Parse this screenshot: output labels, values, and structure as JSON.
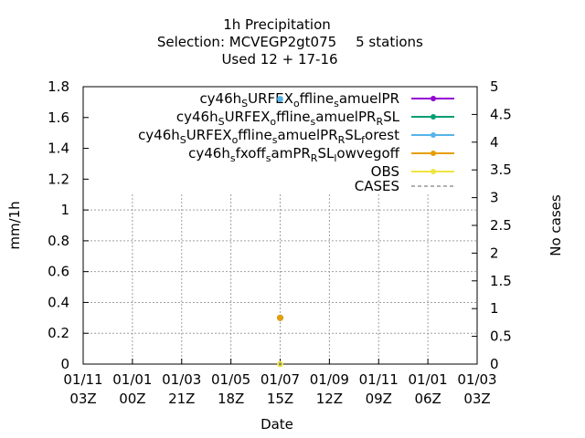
{
  "chart_data": {
    "type": "scatter",
    "title": "1h Precipitation",
    "subtitle_selection": "Selection: MCVEGP2gt075",
    "subtitle_stations": "5 stations",
    "subtitle_used": "Used  12 + 17-16",
    "xlabel": "Date",
    "ylabel": "mm/1h",
    "y2label": "No cases",
    "ylim": [
      0,
      1.8
    ],
    "y2lim": [
      0,
      5
    ],
    "yticks": [
      "0",
      "0.2",
      "0.4",
      "0.6",
      "0.8",
      "1",
      "1.2",
      "1.4",
      "1.6",
      "1.8"
    ],
    "y2ticks": [
      "0",
      "0.5",
      "1",
      "1.5",
      "2",
      "2.5",
      "3",
      "3.5",
      "4",
      "4.5",
      "5"
    ],
    "xticks": [
      {
        "line1": "01/11",
        "line2": "03Z"
      },
      {
        "line1": "01/01",
        "line2": "00Z"
      },
      {
        "line1": "01/03",
        "line2": "21Z"
      },
      {
        "line1": "01/05",
        "line2": "18Z"
      },
      {
        "line1": "01/07",
        "line2": "15Z"
      },
      {
        "line1": "01/09",
        "line2": "12Z"
      },
      {
        "line1": "01/11",
        "line2": "09Z"
      },
      {
        "line1": "01/01",
        "line2": "06Z"
      },
      {
        "line1": "01/03",
        "line2": "03Z"
      }
    ],
    "grid": true,
    "legend_position": "top-right",
    "series": [
      {
        "name": "cy46h_SURFEX_offline_samuelPR",
        "color": "#9400d3",
        "points": [
          {
            "x": "01/07 15Z",
            "y": 0.3
          }
        ]
      },
      {
        "name": "cy46h_SURFEX_offline_samuelPR_RSL",
        "color": "#009e73",
        "points": [
          {
            "x": "01/07 15Z",
            "y": 0.3
          }
        ]
      },
      {
        "name": "cy46h_SURFEX_offline_samuelPR_RSL_forest",
        "color": "#56b4e9",
        "points": [
          {
            "x": "01/07 15Z",
            "y": 1.72
          }
        ]
      },
      {
        "name": "cy46h_sfxoff_samPR_RSL_lowvegoff",
        "color": "#e69f00",
        "points": [
          {
            "x": "01/07 15Z",
            "y": 0.3
          }
        ]
      },
      {
        "name": "OBS",
        "color": "#f0e442",
        "points": [
          {
            "x": "01/07 15Z",
            "y": 0.0
          }
        ]
      }
    ],
    "cases": {
      "name": "CASES",
      "color": "#808080",
      "points": [
        {
          "x": "01/07 15Z",
          "y2": 0
        }
      ]
    }
  }
}
